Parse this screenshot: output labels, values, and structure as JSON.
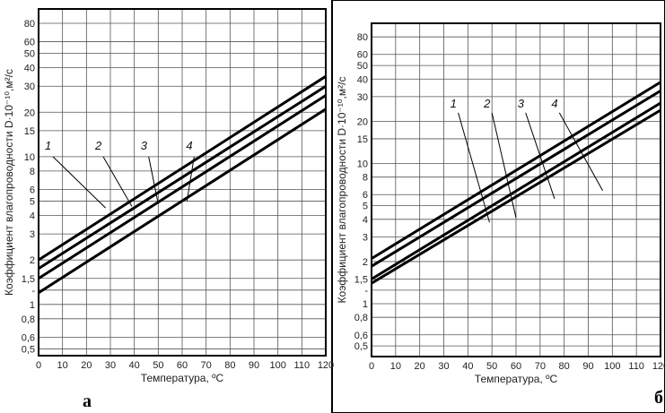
{
  "panels": [
    {
      "letter": "а",
      "chart_data": {
        "type": "line",
        "xlabel": "Температура, ºС",
        "ylabel": "Коэффициент влагопроводности D·10⁻¹⁰,м²/с",
        "log_y": true,
        "grid": true,
        "xlim": [
          0,
          120
        ],
        "ylim": [
          0.45,
          100
        ],
        "x_ticks": [
          "0",
          "10",
          "20",
          "30",
          "40",
          "50",
          "60",
          "70",
          "80",
          "90",
          "100",
          "110",
          "120"
        ],
        "y_ticks": [
          {
            "v": 0.5,
            "t": "0,5"
          },
          {
            "v": 0.6,
            "t": "0,6"
          },
          {
            "v": 0.8,
            "t": "0,8"
          },
          {
            "v": 1,
            "t": "1"
          },
          {
            "v": 1.25,
            "t": "-"
          },
          {
            "v": 1.5,
            "t": "1,5"
          },
          {
            "v": 2,
            "t": "2"
          },
          {
            "v": 3,
            "t": "3"
          },
          {
            "v": 4,
            "t": "4"
          },
          {
            "v": 5,
            "t": "5"
          },
          {
            "v": 6,
            "t": "6"
          },
          {
            "v": 8,
            "t": "8"
          },
          {
            "v": 10,
            "t": "10"
          },
          {
            "v": 15,
            "t": "15"
          },
          {
            "v": 20,
            "t": "20"
          },
          {
            "v": 30,
            "t": "30"
          },
          {
            "v": 40,
            "t": "40"
          },
          {
            "v": 50,
            "t": "50"
          },
          {
            "v": 60,
            "t": "60"
          },
          {
            "v": 80,
            "t": "80"
          }
        ],
        "series": [
          {
            "label": "1",
            "x": [
              0,
              120
            ],
            "y": [
              2.0,
              35
            ]
          },
          {
            "label": "2",
            "x": [
              0,
              120
            ],
            "y": [
              1.75,
              30
            ]
          },
          {
            "label": "3",
            "x": [
              0,
              120
            ],
            "y": [
              1.5,
              26
            ]
          },
          {
            "label": "4",
            "x": [
              0,
              120
            ],
            "y": [
              1.2,
              21
            ]
          }
        ],
        "callouts": [
          {
            "label": "1",
            "text_x": 4,
            "text_y": 11.2,
            "line_from": [
              6,
              10
            ],
            "line_to": [
              28,
              4.5
            ]
          },
          {
            "label": "2",
            "text_x": 25,
            "text_y": 11.2,
            "line_from": [
              27,
              10
            ],
            "line_to": [
              39,
              4.6
            ]
          },
          {
            "label": "3",
            "text_x": 44,
            "text_y": 11.2,
            "line_from": [
              46,
              10
            ],
            "line_to": [
              50,
              4.8
            ]
          },
          {
            "label": "4",
            "text_x": 63,
            "text_y": 11.2,
            "line_from": [
              65,
              10
            ],
            "line_to": [
              62,
              5.0
            ]
          }
        ]
      }
    },
    {
      "letter": "б",
      "chart_data": {
        "type": "line",
        "xlabel": "Температура, ºС",
        "ylabel": "Коэффициент влагопроводности D·10⁻¹⁰,м²/с",
        "log_y": true,
        "grid": true,
        "xlim": [
          0,
          120
        ],
        "ylim": [
          0.42,
          100
        ],
        "x_ticks": [
          "0",
          "10",
          "20",
          "30",
          "40",
          "50",
          "60",
          "70",
          "80",
          "90",
          "100",
          "110",
          "120"
        ],
        "y_ticks": [
          {
            "v": 0.5,
            "t": "0,5"
          },
          {
            "v": 0.6,
            "t": "0,6"
          },
          {
            "v": 0.8,
            "t": "0,8"
          },
          {
            "v": 1,
            "t": "1"
          },
          {
            "v": 1.25,
            "t": "-"
          },
          {
            "v": 1.5,
            "t": "1,5"
          },
          {
            "v": 2,
            "t": "2"
          },
          {
            "v": 3,
            "t": "3"
          },
          {
            "v": 4,
            "t": "4"
          },
          {
            "v": 5,
            "t": "5"
          },
          {
            "v": 6,
            "t": "6"
          },
          {
            "v": 8,
            "t": "8"
          },
          {
            "v": 10,
            "t": "10"
          },
          {
            "v": 15,
            "t": "15"
          },
          {
            "v": 20,
            "t": "20"
          },
          {
            "v": 30,
            "t": "30"
          },
          {
            "v": 40,
            "t": "40"
          },
          {
            "v": 50,
            "t": "50"
          },
          {
            "v": 60,
            "t": "60"
          },
          {
            "v": 80,
            "t": "80"
          }
        ],
        "series": [
          {
            "label": "1",
            "x": [
              0,
              120
            ],
            "y": [
              2.1,
              38
            ]
          },
          {
            "label": "2",
            "x": [
              0,
              120
            ],
            "y": [
              1.85,
              33
            ]
          },
          {
            "label": "3",
            "x": [
              0,
              120
            ],
            "y": [
              1.5,
              27
            ]
          },
          {
            "label": "4",
            "x": [
              0,
              120
            ],
            "y": [
              1.4,
              24
            ]
          }
        ],
        "callouts": [
          {
            "label": "1",
            "text_x": 34,
            "text_y": 25,
            "line_from": [
              36,
              23
            ],
            "line_to": [
              49,
              3.8
            ]
          },
          {
            "label": "2",
            "text_x": 48,
            "text_y": 25,
            "line_from": [
              50,
              23
            ],
            "line_to": [
              60,
              4.1
            ]
          },
          {
            "label": "3",
            "text_x": 62,
            "text_y": 25,
            "line_from": [
              64,
              23
            ],
            "line_to": [
              76,
              5.6
            ]
          },
          {
            "label": "4",
            "text_x": 76,
            "text_y": 25,
            "line_from": [
              78,
              23
            ],
            "line_to": [
              96,
              6.4
            ]
          }
        ]
      }
    }
  ]
}
